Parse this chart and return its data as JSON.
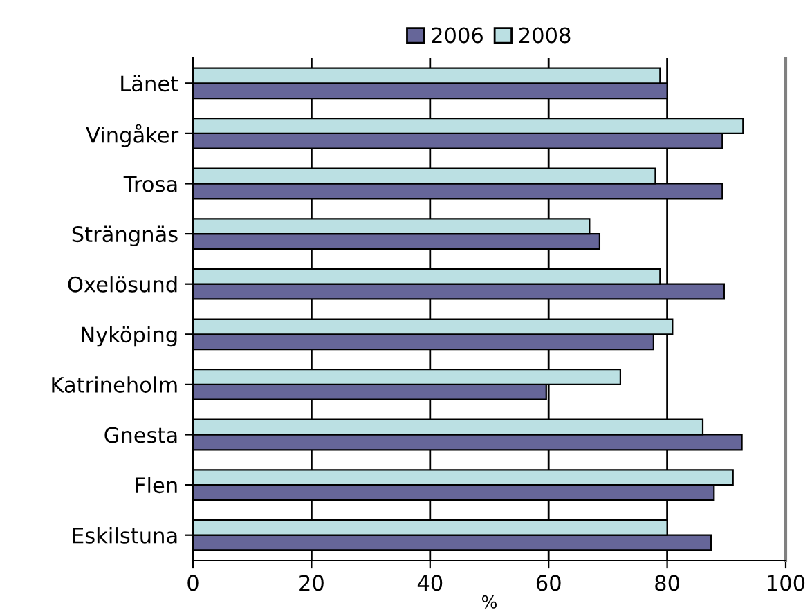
{
  "chart_data": {
    "type": "bar",
    "orientation": "horizontal",
    "xlabel": "%",
    "categories": [
      "Länet",
      "Vingåker",
      "Trosa",
      "Strängnäs",
      "Oxelösund",
      "Nyköping",
      "Katrineholm",
      "Gnesta",
      "Flen",
      "Eskilstuna"
    ],
    "series": [
      {
        "name": "2006",
        "color": "#666699",
        "values": [
          80.0,
          89.3,
          89.3,
          68.6,
          89.6,
          77.7,
          59.6,
          92.6,
          87.9,
          87.4
        ]
      },
      {
        "name": "2008",
        "color": "#bbe0e3",
        "values": [
          78.8,
          92.8,
          78.0,
          66.9,
          78.8,
          80.9,
          72.1,
          86.0,
          91.1,
          80.0
        ]
      }
    ],
    "xlim": [
      0,
      100
    ],
    "xticks": [
      0,
      20,
      40,
      60,
      80,
      100
    ],
    "grid": "x",
    "legend": "top"
  }
}
